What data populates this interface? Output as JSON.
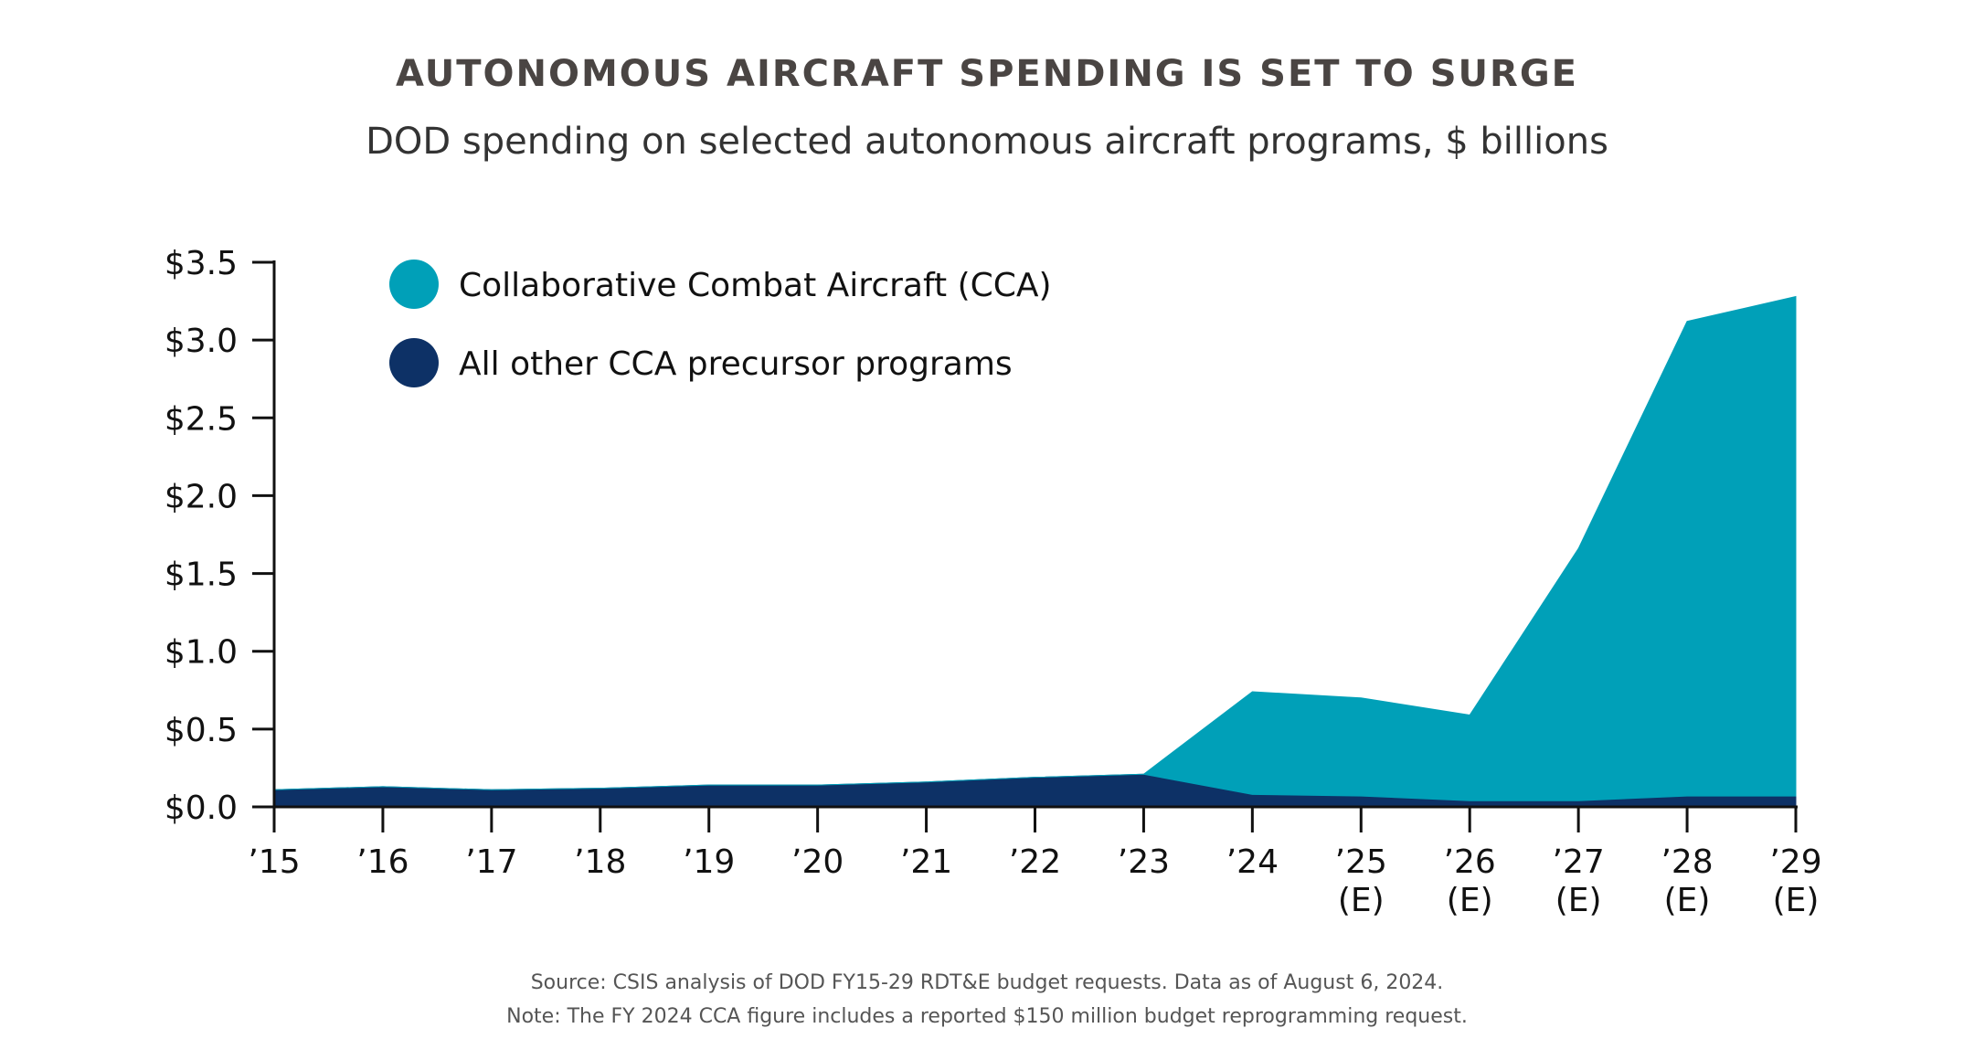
{
  "chart_data": {
    "type": "area",
    "stacked": true,
    "title": "AUTONOMOUS AIRCRAFT SPENDING IS SET TO SURGE",
    "subtitle": "DOD spending on selected autonomous aircraft programs, $ billions",
    "x": [
      "’15",
      "’16",
      "’17",
      "’18",
      "’19",
      "’20",
      "’21",
      "’22",
      "’23",
      "’24",
      "’25\n(E)",
      "’26\n(E)",
      "’27\n(E)",
      "’28\n(E)",
      "’29\n(E)"
    ],
    "series": [
      {
        "name": "All other CCA precursor programs",
        "color": "#0d3166",
        "values": [
          0.11,
          0.13,
          0.11,
          0.12,
          0.14,
          0.14,
          0.16,
          0.19,
          0.21,
          0.08,
          0.07,
          0.04,
          0.04,
          0.07,
          0.07
        ]
      },
      {
        "name": "Collaborative Combat Aircraft (CCA)",
        "color": "#00a0b8",
        "values": [
          0,
          0,
          0,
          0,
          0,
          0,
          0,
          0,
          0,
          0.66,
          0.63,
          0.55,
          1.62,
          3.05,
          3.21
        ]
      }
    ],
    "y_ticks": [
      "$0.0",
      "$0.5",
      "$1.0",
      "$1.5",
      "$2.0",
      "$2.5",
      "$3.0",
      "$3.5"
    ],
    "ylim": [
      0,
      3.5
    ],
    "xlabel": "",
    "ylabel": "",
    "legend_position": "top-left",
    "grid": false
  },
  "notes": {
    "source": "Source: CSIS analysis of DOD FY15-29 RDT&E budget requests. Data as of August 6, 2024.",
    "note": "Note: The FY 2024 CCA figure includes a reported $150 million budget reprogramming request."
  }
}
